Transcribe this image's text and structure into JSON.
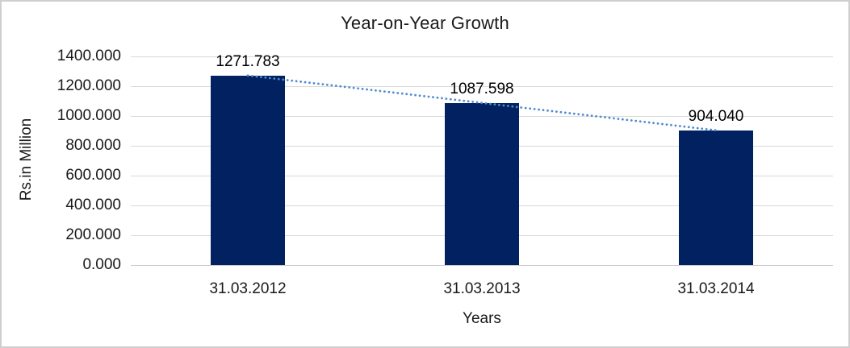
{
  "chart_data": {
    "type": "bar",
    "title": "Year-on-Year Growth",
    "xlabel": "Years",
    "ylabel": "Rs.in Million",
    "categories": [
      "31.03.2012",
      "31.03.2013",
      "31.03.2014"
    ],
    "values": [
      1271.783,
      1087.598,
      904.04
    ],
    "data_labels": [
      "1271.783",
      "1087.598",
      "904.040"
    ],
    "ylim": [
      0,
      1400
    ],
    "ytick_step": 200,
    "ytick_labels": [
      "0.000",
      "200.000",
      "400.000",
      "600.000",
      "800.000",
      "1000.000",
      "1200.000",
      "1400.000"
    ],
    "grid": true,
    "legend": "none",
    "trendline": {
      "type": "linear",
      "style": "dotted"
    },
    "colors": {
      "bar": "#022161",
      "gridline": "#D9D9D9",
      "axis_line": "#C9C9C9",
      "trendline": "#4F8BD0",
      "border": "#D0CECE",
      "background": "#FFFFFF",
      "text": "#1A1A1A",
      "data_label_text": "#000000"
    }
  }
}
